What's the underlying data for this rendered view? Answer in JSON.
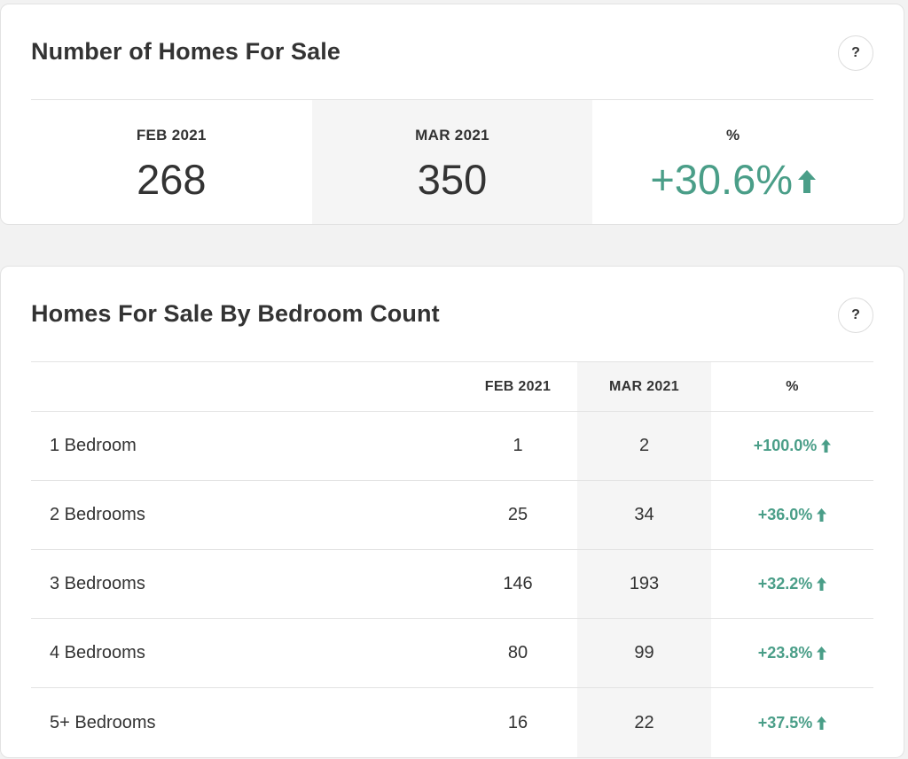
{
  "summary": {
    "title": "Number of Homes For Sale",
    "help_label": "?",
    "stats": [
      {
        "label": "FEB 2021",
        "value": "268"
      },
      {
        "label": "MAR 2021",
        "value": "350"
      },
      {
        "label": "%",
        "value": "+30.6%",
        "trend_icon": "arrow-up-icon"
      }
    ]
  },
  "bedrooms": {
    "title": "Homes For Sale By Bedroom Count",
    "help_label": "?",
    "columns": [
      "",
      "FEB 2021",
      "MAR 2021",
      "%"
    ],
    "rows": [
      {
        "name": "1 Bedroom",
        "feb": "1",
        "mar": "2",
        "pct": "+100.0%"
      },
      {
        "name": "2 Bedrooms",
        "feb": "25",
        "mar": "34",
        "pct": "+36.0%"
      },
      {
        "name": "3 Bedrooms",
        "feb": "146",
        "mar": "193",
        "pct": "+32.2%"
      },
      {
        "name": "4 Bedrooms",
        "feb": "80",
        "mar": "99",
        "pct": "+23.8%"
      },
      {
        "name": "5+ Bedrooms",
        "feb": "16",
        "mar": "22",
        "pct": "+37.5%"
      }
    ]
  },
  "colors": {
    "positive": "#4a9e88",
    "text": "#333333",
    "shade": "#f5f5f5"
  }
}
